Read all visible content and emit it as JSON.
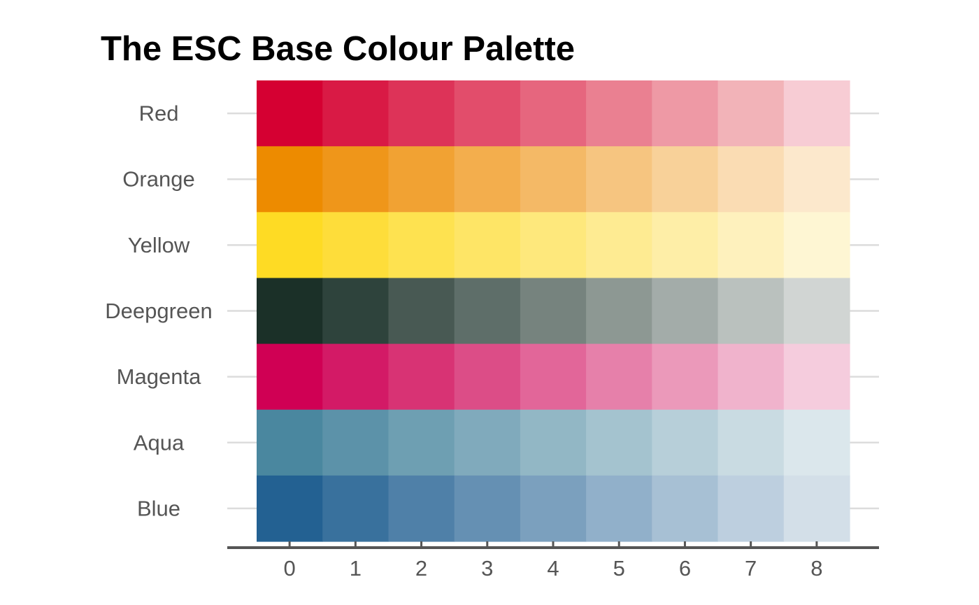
{
  "chart_data": {
    "type": "heatmap",
    "title": "The ESC Base Colour Palette",
    "xlabel": "",
    "ylabel": "",
    "columns": [
      "0",
      "1",
      "2",
      "3",
      "4",
      "5",
      "6",
      "7",
      "8"
    ],
    "grid": false,
    "rows": [
      {
        "name": "Red",
        "colors": [
          "#D50032",
          "#D91A45",
          "#DD3358",
          "#E24D6B",
          "#E6667E",
          "#EA8091",
          "#EE99A5",
          "#F2B3B8",
          "#F7CCD4"
        ]
      },
      {
        "name": "Orange",
        "colors": [
          "#ED8B00",
          "#EF961A",
          "#F1A233",
          "#F3AE4D",
          "#F4B966",
          "#F6C580",
          "#F8D199",
          "#FADCB3",
          "#FCE8CC"
        ]
      },
      {
        "name": "Yellow",
        "colors": [
          "#FEDB24",
          "#FEDD3A",
          "#FEE250",
          "#FEE566",
          "#FEE87C",
          "#FEEB92",
          "#FEEEA7",
          "#FEF1BD",
          "#FEF6D3"
        ]
      },
      {
        "name": "Deepgreen",
        "colors": [
          "#1B3028",
          "#2E433C",
          "#485953",
          "#5E6E69",
          "#76837E",
          "#8D9893",
          "#A3ACA9",
          "#BAC1BE",
          "#D1D5D3"
        ]
      },
      {
        "name": "Magenta",
        "colors": [
          "#D00054",
          "#D31A66",
          "#D83374",
          "#DC4D87",
          "#E26699",
          "#E680AA",
          "#EB99BA",
          "#F0B3CC",
          "#F5CCDD"
        ]
      },
      {
        "name": "Aqua",
        "colors": [
          "#4A879F",
          "#5C92A9",
          "#6E9FB2",
          "#80AABC",
          "#92B7C5",
          "#A4C3CF",
          "#B7CFD9",
          "#C9DBE2",
          "#DBE7EC"
        ]
      },
      {
        "name": "Blue",
        "colors": [
          "#236192",
          "#39719D",
          "#4F80A8",
          "#6590B3",
          "#7BA0BE",
          "#91B0CA",
          "#A7C0D4",
          "#BDCFDF",
          "#D3DFE8"
        ]
      }
    ]
  }
}
